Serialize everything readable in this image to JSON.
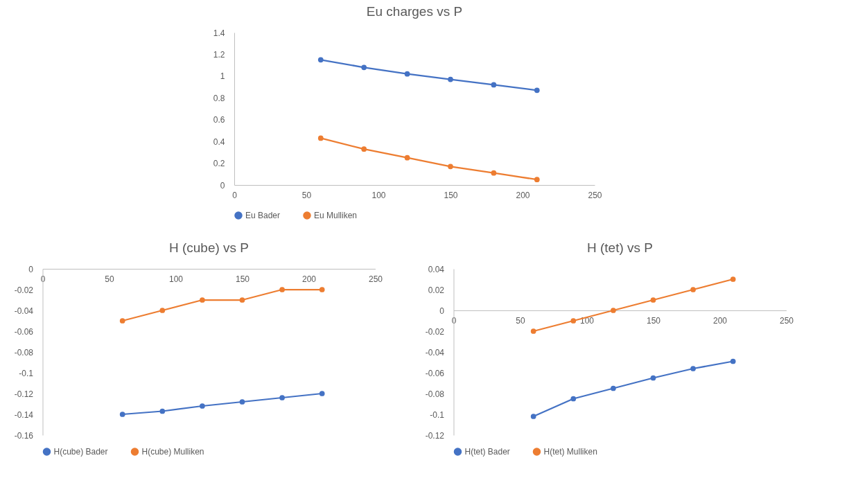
{
  "chart_data": [
    {
      "type": "line",
      "title": "Eu charges vs P",
      "x": [
        60,
        90,
        120,
        150,
        180,
        210
      ],
      "xlim": [
        0,
        250
      ],
      "xticks": [
        0,
        50,
        100,
        150,
        200,
        250
      ],
      "ylim": [
        0,
        1.4
      ],
      "yticks": [
        0,
        0.2,
        0.4,
        0.6,
        0.8,
        1,
        1.2,
        1.4
      ],
      "grid": false,
      "legend": "bottom",
      "marker": "circle",
      "line_style": "solid",
      "series": [
        {
          "name": "Eu Bader",
          "color": "#4472c4",
          "values": [
            1.15,
            1.08,
            1.02,
            0.97,
            0.92,
            0.87
          ]
        },
        {
          "name": "Eu Mulliken",
          "color": "#ed7d31",
          "values": [
            0.43,
            0.33,
            0.25,
            0.17,
            0.11,
            0.05
          ]
        }
      ]
    },
    {
      "type": "line",
      "title": "H (cube) vs P",
      "x": [
        60,
        90,
        120,
        150,
        180,
        210
      ],
      "xlim": [
        0,
        250
      ],
      "xticks": [
        0,
        50,
        100,
        150,
        200,
        250
      ],
      "ylim": [
        -0.16,
        0
      ],
      "yticks": [
        -0.16,
        -0.14,
        -0.12,
        -0.1,
        -0.08,
        -0.06,
        -0.04,
        -0.02,
        0
      ],
      "grid": false,
      "legend": "bottom",
      "marker": "circle",
      "line_style": "solid",
      "series": [
        {
          "name": "H(cube) Bader",
          "color": "#4472c4",
          "values": [
            -0.14,
            -0.137,
            -0.132,
            -0.128,
            -0.124,
            -0.12
          ]
        },
        {
          "name": "H(cube) Mulliken",
          "color": "#ed7d31",
          "values": [
            -0.05,
            -0.04,
            -0.03,
            -0.03,
            -0.02,
            -0.02
          ]
        }
      ]
    },
    {
      "type": "line",
      "title": "H (tet) vs P",
      "x": [
        60,
        90,
        120,
        150,
        180,
        210
      ],
      "xlim": [
        0,
        250
      ],
      "xticks": [
        0,
        50,
        100,
        150,
        200,
        250
      ],
      "ylim": [
        -0.12,
        0.04
      ],
      "yticks": [
        -0.12,
        -0.1,
        -0.08,
        -0.06,
        -0.04,
        -0.02,
        0,
        0.02,
        0.04
      ],
      "grid": false,
      "legend": "bottom",
      "marker": "circle",
      "line_style": "solid",
      "series": [
        {
          "name": "H(tet) Bader",
          "color": "#4472c4",
          "values": [
            -0.102,
            -0.085,
            -0.075,
            -0.065,
            -0.056,
            -0.049
          ]
        },
        {
          "name": "H(tet) Mulliken",
          "color": "#ed7d31",
          "values": [
            -0.02,
            -0.01,
            0,
            0.01,
            0.02,
            0.03
          ]
        }
      ]
    }
  ]
}
